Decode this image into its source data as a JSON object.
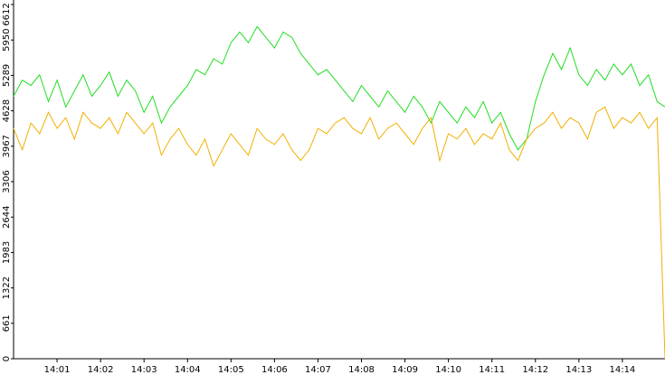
{
  "chart_data": {
    "type": "line",
    "x": [
      0,
      0.2,
      0.4,
      0.6,
      0.8,
      1.0,
      1.2,
      1.4,
      1.6,
      1.8,
      2.0,
      2.2,
      2.4,
      2.6,
      2.8,
      3.0,
      3.2,
      3.4,
      3.6,
      3.8,
      4.0,
      4.2,
      4.4,
      4.6,
      4.8,
      5.0,
      5.2,
      5.4,
      5.6,
      5.8,
      6.0,
      6.2,
      6.4,
      6.6,
      6.8,
      7.0,
      7.2,
      7.4,
      7.6,
      7.8,
      8.0,
      8.2,
      8.4,
      8.6,
      8.8,
      9.0,
      9.2,
      9.4,
      9.6,
      9.8,
      10.0,
      10.2,
      10.4,
      10.6,
      10.8,
      11.0,
      11.2,
      11.4,
      11.6,
      11.8,
      12.0,
      12.2,
      12.4,
      12.6,
      12.8,
      13.0,
      13.2,
      13.4,
      13.6,
      13.8,
      14.0,
      14.2,
      14.4,
      14.6,
      14.8,
      14.98
    ],
    "series": [
      {
        "color": "#22dd22",
        "values": [
          4900,
          5200,
          5100,
          5300,
          4800,
          5200,
          4700,
          5000,
          5300,
          4900,
          5100,
          5350,
          4900,
          5200,
          5000,
          4600,
          4900,
          4400,
          4700,
          4900,
          5100,
          5400,
          5300,
          5600,
          5500,
          5900,
          6100,
          5900,
          6200,
          6000,
          5800,
          6100,
          6000,
          5700,
          5500,
          5300,
          5400,
          5200,
          5000,
          4800,
          5100,
          4900,
          4700,
          5000,
          4800,
          4600,
          4900,
          4700,
          4400,
          4800,
          4600,
          4400,
          4700,
          4500,
          4800,
          4400,
          4600,
          4200,
          3900,
          4100,
          4800,
          5300,
          5700,
          5400,
          5800,
          5300,
          5100,
          5400,
          5200,
          5500,
          5300,
          5500,
          5100,
          5300,
          4800,
          4700
        ]
      },
      {
        "color": "#f0b000",
        "values": [
          4300,
          3900,
          4400,
          4200,
          4600,
          4300,
          4500,
          4100,
          4600,
          4400,
          4300,
          4500,
          4200,
          4600,
          4400,
          4200,
          4400,
          3800,
          4100,
          4300,
          4000,
          3800,
          4100,
          3600,
          3900,
          4200,
          4000,
          3800,
          4300,
          4100,
          4000,
          4200,
          3900,
          3700,
          3900,
          4300,
          4200,
          4400,
          4500,
          4300,
          4200,
          4500,
          4100,
          4300,
          4400,
          4200,
          4000,
          4300,
          4500,
          3700,
          4200,
          4100,
          4300,
          4000,
          4200,
          4100,
          4400,
          3900,
          3700,
          4100,
          4300,
          4400,
          4600,
          4300,
          4500,
          4400,
          4100,
          4600,
          4700,
          4300,
          4500,
          4400,
          4600,
          4300,
          4500,
          0
        ]
      }
    ],
    "xlim": [
      0,
      14.98
    ],
    "xticks": [
      {
        "value": 1,
        "label": "14:01"
      },
      {
        "value": 2,
        "label": "14:02"
      },
      {
        "value": 3,
        "label": "14:03"
      },
      {
        "value": 4,
        "label": "14:04"
      },
      {
        "value": 5,
        "label": "14:05"
      },
      {
        "value": 6,
        "label": "14:06"
      },
      {
        "value": 7,
        "label": "14:07"
      },
      {
        "value": 8,
        "label": "14:08"
      },
      {
        "value": 9,
        "label": "14:09"
      },
      {
        "value": 10,
        "label": "14:10"
      },
      {
        "value": 11,
        "label": "14:11"
      },
      {
        "value": 12,
        "label": "14:12"
      },
      {
        "value": 13,
        "label": "14:13"
      },
      {
        "value": 14,
        "label": "14:14"
      }
    ],
    "ylim": [
      0,
      6612
    ],
    "yticks": [
      0,
      661,
      1322,
      1983,
      2644,
      3306,
      3967,
      4628,
      5289,
      5950,
      6612
    ]
  }
}
